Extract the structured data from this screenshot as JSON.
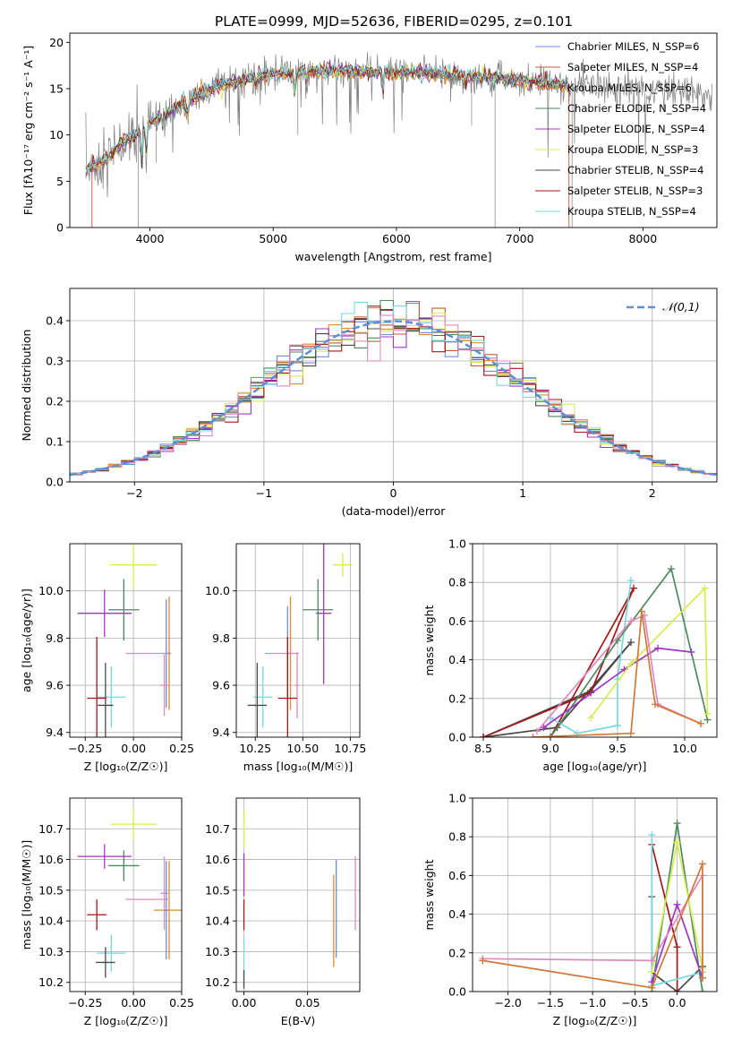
{
  "figure_title": "PLATE=0999, MJD=52636, FIBERID=0295, z=0.101",
  "colors": {
    "data": "#808080",
    "chab_miles": "#6a8fd8",
    "salp_miles": "#c45a38",
    "kroupa_miles": "#e08a2c",
    "chab_elodie": "#4e8a60",
    "salp_elodie": "#a035c4",
    "kroupa_elodie": "#d8ec50",
    "chab_stelib": "#484848",
    "salp_stelib": "#a01818",
    "kroupa_stelib": "#78d8e0",
    "pink": "#e088c0",
    "orange2": "#d07838",
    "gaussian": "#5b8fd6",
    "grid": "#b0b0b0"
  },
  "chart_data": [
    {
      "id": "spectrum",
      "type": "line",
      "title": "PLATE=0999, MJD=52636, FIBERID=0295, z=0.101",
      "xlabel": "wavelength [Angstrom, rest frame]",
      "ylabel": "Flux [fλ10⁻¹⁷ erg cm⁻² s⁻¹ A⁻¹]",
      "xlim": [
        3350,
        8600
      ],
      "ylim": [
        0,
        21
      ],
      "xticks": [
        "4000",
        "5000",
        "6000",
        "7000",
        "8000"
      ],
      "yticks": [
        "0",
        "5",
        "10",
        "15",
        "20"
      ],
      "grid": false,
      "legend_position": "right",
      "legend": [
        "Chabrier MILES, N_SSP=6",
        "Salpeter MILES, N_SSP=4",
        "Kroupa MILES, N_SSP=6",
        "Chabrier ELODIE, N_SSP=4",
        "Salpeter ELODIE, N_SSP=4",
        "Kroupa ELODIE, N_SSP=3",
        "Chabrier STELIB, N_SSP=4",
        "Salpeter STELIB, N_SSP=3",
        "Kroupa STELIB, N_SSP=4"
      ],
      "continuum": {
        "x": [
          3480,
          3600,
          3700,
          3800,
          3900,
          4000,
          4100,
          4200,
          4300,
          4400,
          4500,
          4600,
          4700,
          4800,
          4900,
          5000,
          5200,
          5400,
          5600,
          5800,
          6000,
          6200,
          6400,
          6600,
          6800,
          7000,
          7200,
          7400,
          7600,
          7800,
          8000,
          8200,
          8400,
          8600
        ],
        "y": [
          6.2,
          7.0,
          8.0,
          9.5,
          10.2,
          11.5,
          12.0,
          12.8,
          13.6,
          14.3,
          14.9,
          15.4,
          15.8,
          16.1,
          16.4,
          16.6,
          16.8,
          16.9,
          16.9,
          16.9,
          16.8,
          16.7,
          16.5,
          16.3,
          16.1,
          15.9,
          15.6,
          15.4,
          15.2,
          15.0,
          14.8,
          14.7,
          14.6,
          14.5
        ]
      },
      "model_xmax": 7400
    },
    {
      "id": "residual-histogram",
      "type": "line",
      "xlabel": "(data-model)/error",
      "ylabel": "Normed distribution",
      "xlim": [
        -2.5,
        2.5
      ],
      "ylim": [
        0,
        0.48
      ],
      "xticks": [
        "−2",
        "−1",
        "0",
        "1",
        "2"
      ],
      "yticks": [
        "0.0",
        "0.1",
        "0.2",
        "0.3",
        "0.4"
      ],
      "grid": true,
      "legend_position": "top-right",
      "legend": [
        "𝒩(0,1)"
      ],
      "bin_width": 0.1
    },
    {
      "id": "age-vs-z",
      "type": "scatter",
      "xlabel": "Z [log₁₀(Z/Z☉)]",
      "ylabel": "age  [log₁₀(age/yr)]",
      "xlim": [
        -0.33,
        0.25
      ],
      "ylim": [
        9.38,
        10.2
      ],
      "xticks": [
        "−0.25",
        "0.00",
        "0.25"
      ],
      "yticks": [
        "9.4",
        "9.6",
        "9.8",
        "10.0"
      ],
      "grid": true,
      "points": [
        {
          "c": "kroupa_elodie",
          "x": 0.0,
          "y": 10.11,
          "xe": 0.12,
          "ye": 0.1
        },
        {
          "c": "chab_elodie",
          "x": -0.05,
          "y": 9.92,
          "xe": 0.08,
          "ye": 0.13
        },
        {
          "c": "salp_elodie",
          "x": -0.15,
          "y": 9.905,
          "xe": 0.14,
          "ye": 0.1
        },
        {
          "c": "kroupa_miles",
          "x": 0.185,
          "y": 9.735,
          "xe": 0.01,
          "ye": 0.24
        },
        {
          "c": "chab_miles",
          "x": 0.17,
          "y": 9.735,
          "xe": 0.02,
          "ye": 0.23
        },
        {
          "c": "pink",
          "x": 0.07,
          "y": 9.735,
          "xe": 0.11,
          "ye": 0.0
        },
        {
          "c": "pink",
          "x": 0.16,
          "y": 9.6,
          "xe": 0.02,
          "ye": 0.13
        },
        {
          "c": "kroupa_stelib",
          "x": -0.115,
          "y": 9.55,
          "xe": 0.075,
          "ye": 0.13
        },
        {
          "c": "salp_stelib",
          "x": -0.19,
          "y": 9.545,
          "xe": 0.05,
          "ye": 0.26
        },
        {
          "c": "chab_stelib",
          "x": -0.145,
          "y": 9.515,
          "xe": 0.04,
          "ye": 0.18
        }
      ]
    },
    {
      "id": "age-vs-mass",
      "type": "scatter",
      "xlabel": "mass [log₁₀(M/M☉)]",
      "ylabel": "",
      "xlim": [
        10.15,
        10.8
      ],
      "ylim": [
        9.38,
        10.2
      ],
      "xticks": [
        "10.25",
        "10.50",
        "10.75"
      ],
      "yticks": [
        "9.4",
        "9.6",
        "9.8",
        "10.0"
      ],
      "grid": true,
      "points": [
        {
          "c": "kroupa_elodie",
          "x": 10.71,
          "y": 10.11,
          "xe": 0.05,
          "ye": 0.05
        },
        {
          "c": "chab_elodie",
          "x": 10.58,
          "y": 9.92,
          "xe": 0.08,
          "ye": 0.13
        },
        {
          "c": "salp_elodie",
          "x": 10.61,
          "y": 9.905,
          "xe": 0.04,
          "ye": 0.3
        },
        {
          "c": "kroupa_miles",
          "x": 10.435,
          "y": 9.735,
          "xe": 0.01,
          "ye": 0.24
        },
        {
          "c": "chab_miles",
          "x": 10.42,
          "y": 9.735,
          "xe": 0.01,
          "ye": 0.2
        },
        {
          "c": "pink",
          "x": 10.39,
          "y": 9.735,
          "xe": 0.09,
          "ye": 0.0
        },
        {
          "c": "pink",
          "x": 10.47,
          "y": 9.6,
          "xe": 0.01,
          "ye": 0.14
        },
        {
          "c": "kroupa_stelib",
          "x": 10.29,
          "y": 9.55,
          "xe": 0.05,
          "ye": 0.13
        },
        {
          "c": "salp_stelib",
          "x": 10.42,
          "y": 9.545,
          "xe": 0.05,
          "ye": 0.26
        },
        {
          "c": "chab_stelib",
          "x": 10.26,
          "y": 9.515,
          "xe": 0.05,
          "ye": 0.18
        }
      ]
    },
    {
      "id": "weight-vs-age",
      "type": "line",
      "xlabel": "age  [log₁₀(age/yr)]",
      "ylabel": "mass weight",
      "xlim": [
        8.42,
        10.24
      ],
      "ylim": [
        0,
        1.0
      ],
      "xticks": [
        "8.5",
        "9.0",
        "9.5",
        "10.0"
      ],
      "yticks": [
        "0.0",
        "0.2",
        "0.4",
        "0.6",
        "0.8",
        "1.0"
      ],
      "grid": true,
      "series": [
        {
          "c": "chab_stelib",
          "x": [
            8.5,
            9.3,
            9.6,
            9.05,
            8.5
          ],
          "y": [
            0.0,
            0.24,
            0.49,
            0.05,
            0.0
          ]
        },
        {
          "c": "salp_stelib",
          "x": [
            8.5,
            9.3,
            9.62,
            9.0
          ],
          "y": [
            0.0,
            0.23,
            0.77,
            0.0
          ]
        },
        {
          "c": "kroupa_stelib",
          "x": [
            9.6,
            9.5,
            9.5,
            9.2,
            9.0
          ],
          "y": [
            0.81,
            0.3,
            0.06,
            0.02,
            0.1
          ]
        },
        {
          "c": "chab_elodie",
          "x": [
            9.0,
            9.5,
            9.9,
            10.17
          ],
          "y": [
            0.0,
            0.5,
            0.87,
            0.09
          ]
        },
        {
          "c": "salp_elodie",
          "x": [
            8.95,
            9.55,
            9.8,
            10.05
          ],
          "y": [
            0.05,
            0.35,
            0.46,
            0.44
          ]
        },
        {
          "c": "kroupa_elodie",
          "x": [
            9.3,
            9.6,
            10.15,
            10.17
          ],
          "y": [
            0.1,
            0.38,
            0.77,
            0.12
          ]
        },
        {
          "c": "pink",
          "x": [
            8.9,
            9.6,
            9.7,
            9.8,
            10.12
          ],
          "y": [
            0.03,
            0.6,
            0.63,
            0.17,
            0.07
          ]
        },
        {
          "c": "orange2",
          "x": [
            8.87,
            9.6,
            9.68,
            9.78,
            10.12
          ],
          "y": [
            0.0,
            0.02,
            0.65,
            0.17,
            0.07
          ]
        }
      ]
    },
    {
      "id": "mass-vs-z",
      "type": "scatter",
      "xlabel": "Z [log₁₀(Z/Z☉)]",
      "ylabel": "mass [log₁₀(M/M☉)]",
      "xlim": [
        -0.33,
        0.25
      ],
      "ylim": [
        10.17,
        10.8
      ],
      "xticks": [
        "−0.25",
        "0.00",
        "0.25"
      ],
      "yticks": [
        "10.2",
        "10.3",
        "10.4",
        "10.5",
        "10.6",
        "10.7"
      ],
      "grid": true,
      "points": [
        {
          "c": "kroupa_elodie",
          "x": 0.0,
          "y": 10.715,
          "xe": 0.12,
          "ye": 0.05
        },
        {
          "c": "chab_elodie",
          "x": -0.05,
          "y": 10.58,
          "xe": 0.08,
          "ye": 0.05
        },
        {
          "c": "salp_elodie",
          "x": -0.15,
          "y": 10.61,
          "xe": 0.14,
          "ye": 0.04
        },
        {
          "c": "pink",
          "x": 0.07,
          "y": 10.47,
          "xe": 0.11,
          "ye": 0.0
        },
        {
          "c": "pink",
          "x": 0.16,
          "y": 10.49,
          "xe": 0.02,
          "ye": 0.12
        },
        {
          "c": "kroupa_miles",
          "x": 0.185,
          "y": 10.435,
          "xe": 0.08,
          "ye": 0.16
        },
        {
          "c": "chab_miles",
          "x": 0.17,
          "y": 10.435,
          "xe": 0.01,
          "ye": 0.16
        },
        {
          "c": "salp_stelib",
          "x": -0.19,
          "y": 10.42,
          "xe": 0.05,
          "ye": 0.05
        },
        {
          "c": "kroupa_stelib",
          "x": -0.115,
          "y": 10.295,
          "xe": 0.075,
          "ye": 0.06
        },
        {
          "c": "chab_stelib",
          "x": -0.145,
          "y": 10.265,
          "xe": 0.05,
          "ye": 0.05
        }
      ]
    },
    {
      "id": "mass-vs-ebv",
      "type": "scatter",
      "xlabel": "E(B-V)",
      "ylabel": "",
      "xlim": [
        -0.006,
        0.091
      ],
      "ylim": [
        10.17,
        10.8
      ],
      "xticks": [
        "0.00",
        "0.05"
      ],
      "yticks": [
        "10.2",
        "10.3",
        "10.4",
        "10.5",
        "10.6",
        "10.7"
      ],
      "grid": true,
      "points": [
        {
          "c": "kroupa_elodie",
          "x": 0.0,
          "y": 10.7,
          "xe": 0.0,
          "ye": 0.06
        },
        {
          "c": "salp_elodie",
          "x": 0.0,
          "y": 10.55,
          "xe": 0.0,
          "ye": 0.07
        },
        {
          "c": "salp_stelib",
          "x": 0.0,
          "y": 10.42,
          "xe": 0.0,
          "ye": 0.05
        },
        {
          "c": "kroupa_stelib",
          "x": 0.0,
          "y": 10.29,
          "xe": 0.0,
          "ye": 0.06
        },
        {
          "c": "chab_stelib",
          "x": 0.0,
          "y": 10.21,
          "xe": 0.0,
          "ye": 0.03
        },
        {
          "c": "chab_miles",
          "x": 0.0725,
          "y": 10.44,
          "xe": 0.0,
          "ye": 0.16
        },
        {
          "c": "kroupa_miles",
          "x": 0.0705,
          "y": 10.4,
          "xe": 0.0,
          "ye": 0.15
        },
        {
          "c": "pink",
          "x": 0.0875,
          "y": 10.49,
          "xe": 0.0,
          "ye": 0.12
        }
      ]
    },
    {
      "id": "weight-vs-z",
      "type": "line",
      "xlabel": "Z [log₁₀(Z/Z☉)]",
      "ylabel": "mass weight",
      "xlim": [
        -2.42,
        0.47
      ],
      "ylim": [
        0,
        1.0
      ],
      "xticks": [
        "−2.0",
        "−1.5",
        "−1.0",
        "−0.5",
        "0.0"
      ],
      "yticks": [
        "0.0",
        "0.2",
        "0.4",
        "0.6",
        "0.8",
        "1.0"
      ],
      "grid": true,
      "series": [
        {
          "c": "chab_stelib",
          "x": [
            -0.3,
            -0.3,
            0.0,
            0.3
          ],
          "y": [
            0.49,
            0.1,
            0.0,
            0.13
          ]
        },
        {
          "c": "salp_stelib",
          "x": [
            -0.3,
            0.0,
            0.0
          ],
          "y": [
            0.76,
            0.23,
            0.0
          ]
        },
        {
          "c": "kroupa_stelib",
          "x": [
            -0.3,
            -0.3,
            0.3
          ],
          "y": [
            0.81,
            0.03,
            0.1
          ]
        },
        {
          "c": "chab_elodie",
          "x": [
            -0.3,
            0.0,
            0.3
          ],
          "y": [
            0.0,
            0.87,
            0.0
          ]
        },
        {
          "c": "salp_elodie",
          "x": [
            -0.3,
            0.0,
            0.3
          ],
          "y": [
            0.05,
            0.45,
            0.07
          ]
        },
        {
          "c": "kroupa_elodie",
          "x": [
            -0.3,
            0.0,
            0.3
          ],
          "y": [
            0.1,
            0.77,
            0.12
          ]
        },
        {
          "c": "pink",
          "x": [
            -2.3,
            -0.3,
            0.3,
            0.3
          ],
          "y": [
            0.17,
            0.16,
            0.6,
            0.07
          ]
        },
        {
          "c": "orange2",
          "x": [
            -2.3,
            -0.3,
            0.3,
            0.3
          ],
          "y": [
            0.16,
            0.02,
            0.66,
            0.07
          ]
        }
      ]
    }
  ]
}
